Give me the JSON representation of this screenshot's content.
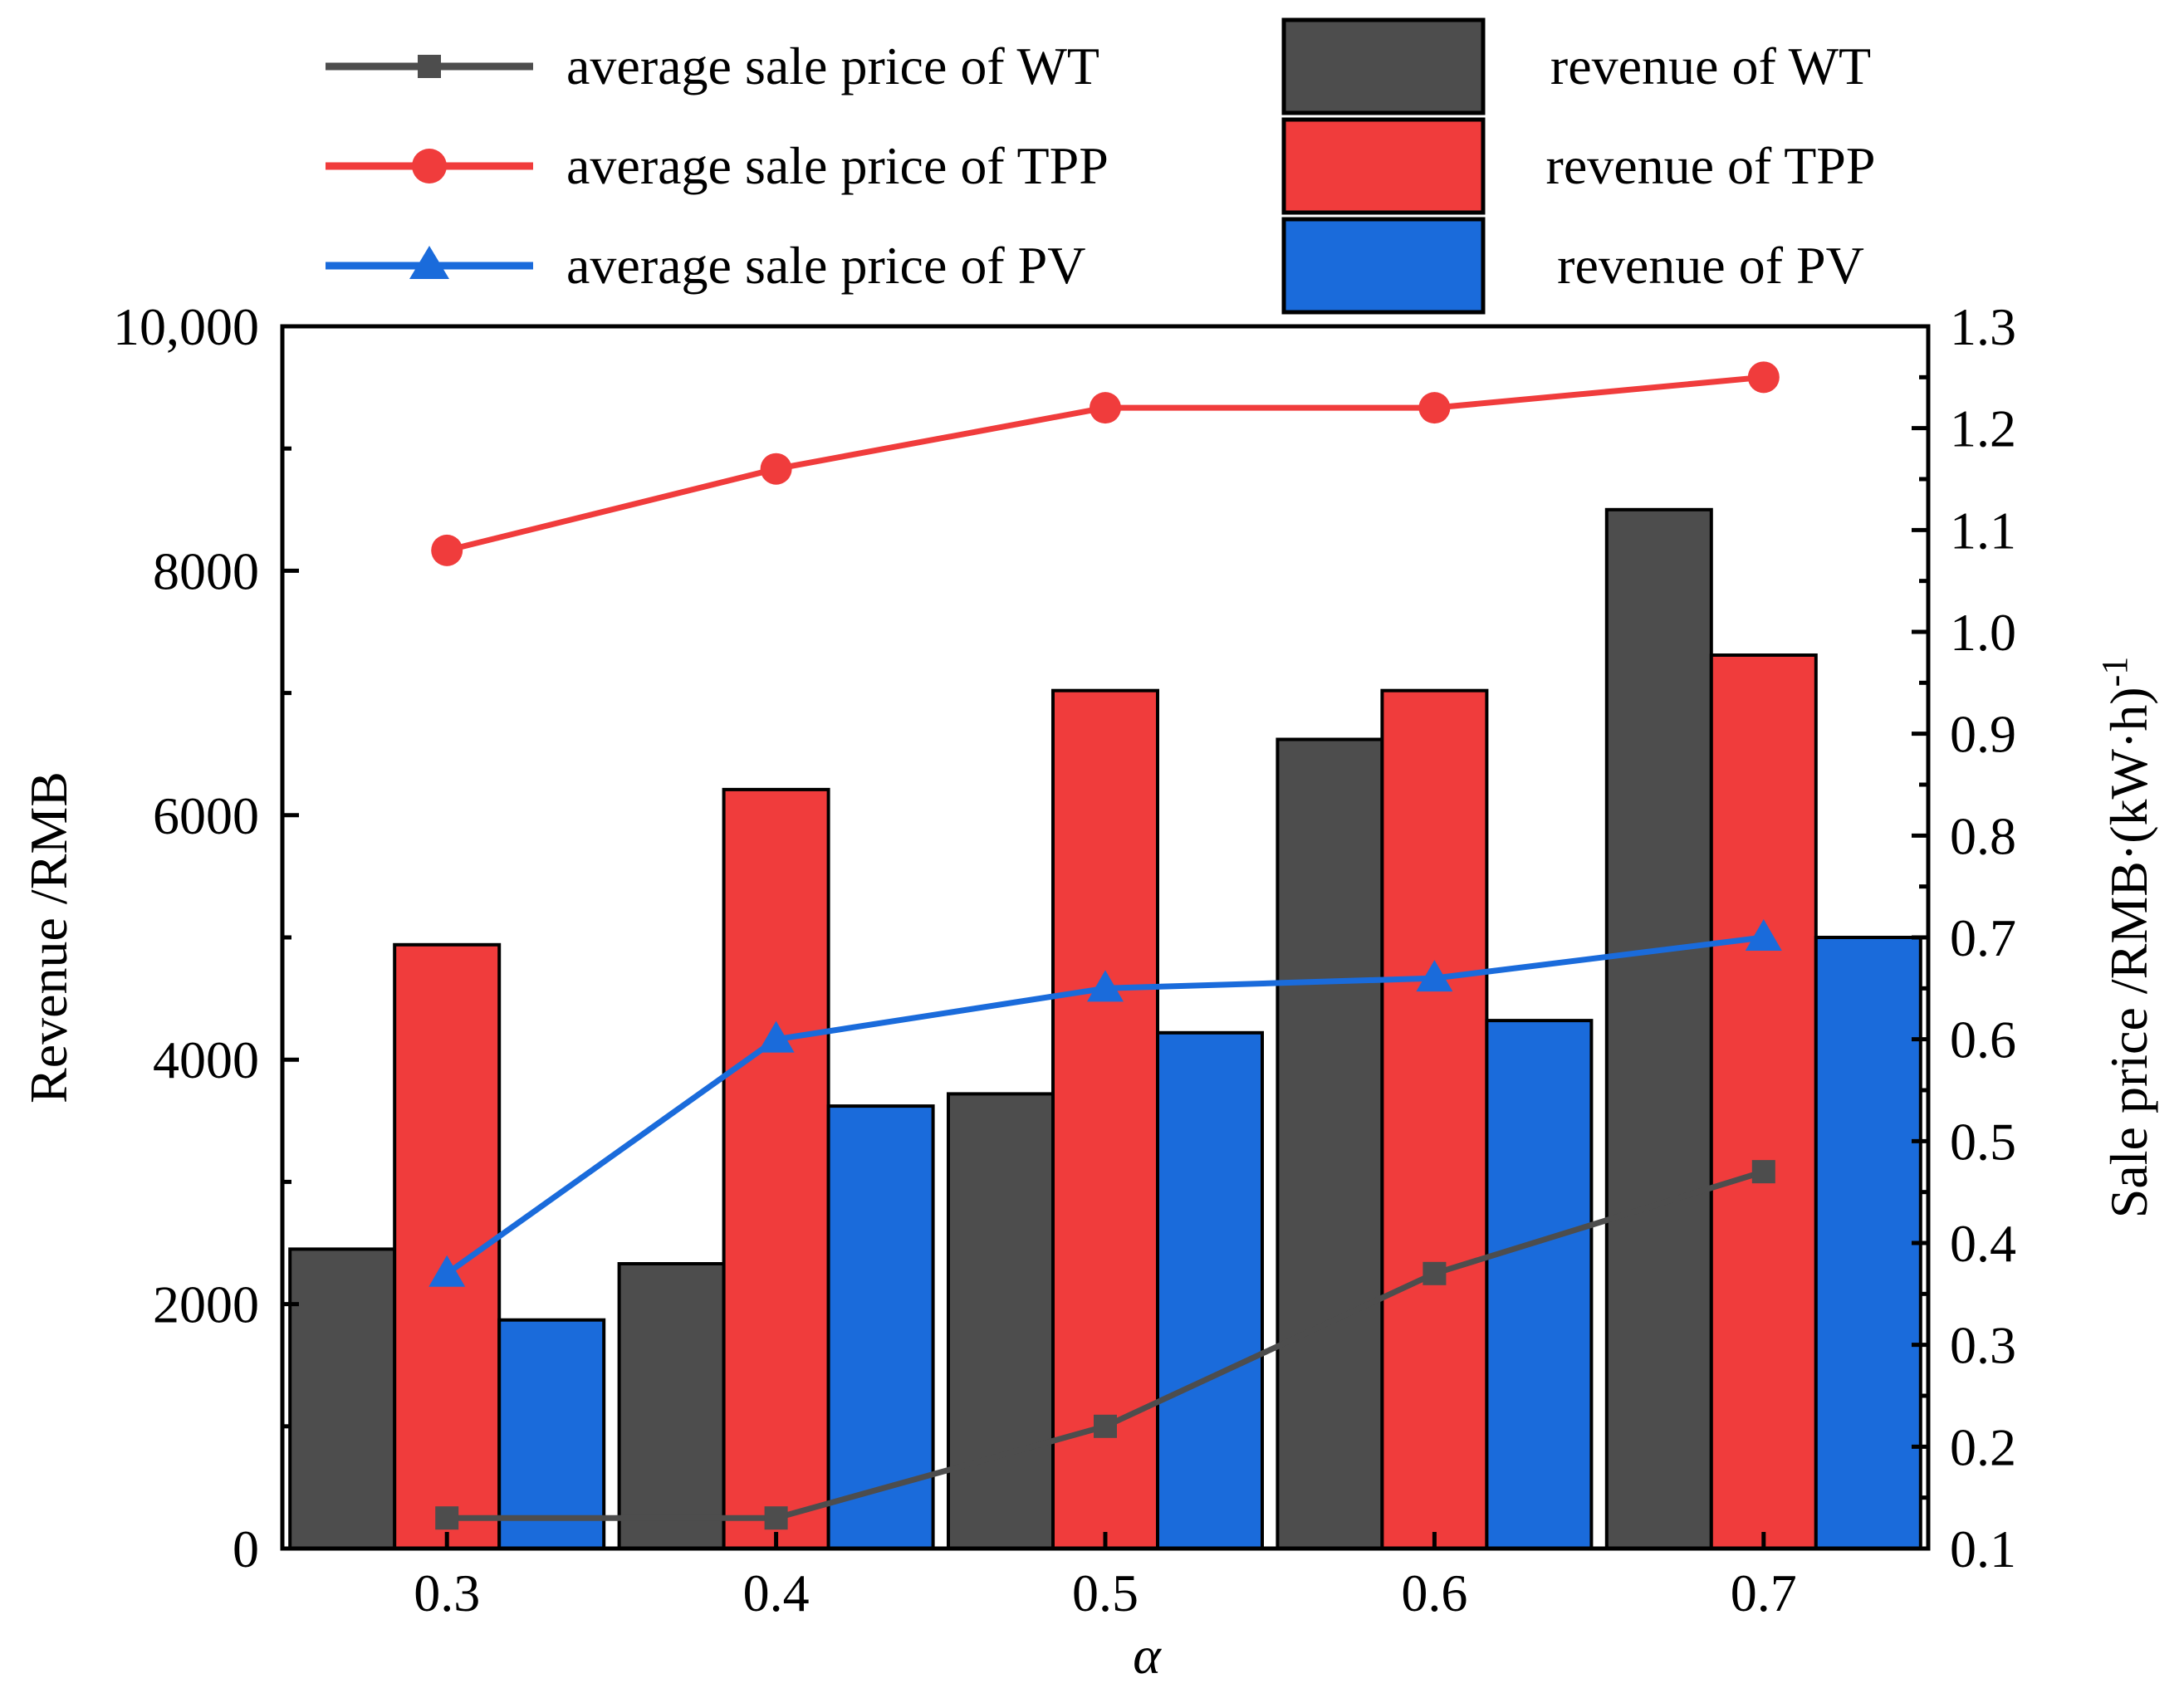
{
  "chart_data": {
    "type": "bar",
    "title": "",
    "xlabel": "α",
    "ylabel": "Revenue /RMB",
    "y2label": "Sale price /RMB·(kW·h)",
    "y2label_superscript": "-1",
    "categories": [
      "0.3",
      "0.4",
      "0.5",
      "0.6",
      "0.7"
    ],
    "ylim": [
      0,
      10000
    ],
    "y2lim": [
      0.1,
      1.3
    ],
    "y_ticks": [
      "0",
      "2000",
      "4000",
      "6000",
      "8000",
      "10,000"
    ],
    "y2_ticks": [
      "0.1",
      "0.2",
      "0.3",
      "0.4",
      "0.5",
      "0.6",
      "0.7",
      "0.8",
      "0.9",
      "1.0",
      "1.1",
      "1.2",
      "1.3"
    ],
    "grid": false,
    "legend_position": "top",
    "bar_series": [
      {
        "name": "revenue of WT",
        "color": "#4d4d4d",
        "values": [
          2450,
          2330,
          3720,
          6620,
          8500
        ]
      },
      {
        "name": "revenue of TPP",
        "color": "#f03c3c",
        "values": [
          4940,
          6210,
          7020,
          7020,
          7310
        ]
      },
      {
        "name": "revenue of PV",
        "color": "#1a6bdb",
        "values": [
          1870,
          3620,
          4220,
          4320,
          5000
        ]
      }
    ],
    "line_series": [
      {
        "name": "average sale price of WT",
        "color": "#4d4d4d",
        "marker": "square",
        "values": [
          0.13,
          0.13,
          0.22,
          0.37,
          0.47
        ]
      },
      {
        "name": "average sale price of TPP",
        "color": "#f03c3c",
        "marker": "circle",
        "values": [
          1.08,
          1.16,
          1.22,
          1.22,
          1.25
        ]
      },
      {
        "name": "average sale price of PV",
        "color": "#1a6bdb",
        "marker": "triangle",
        "values": [
          0.37,
          0.6,
          0.65,
          0.66,
          0.7
        ]
      }
    ]
  }
}
